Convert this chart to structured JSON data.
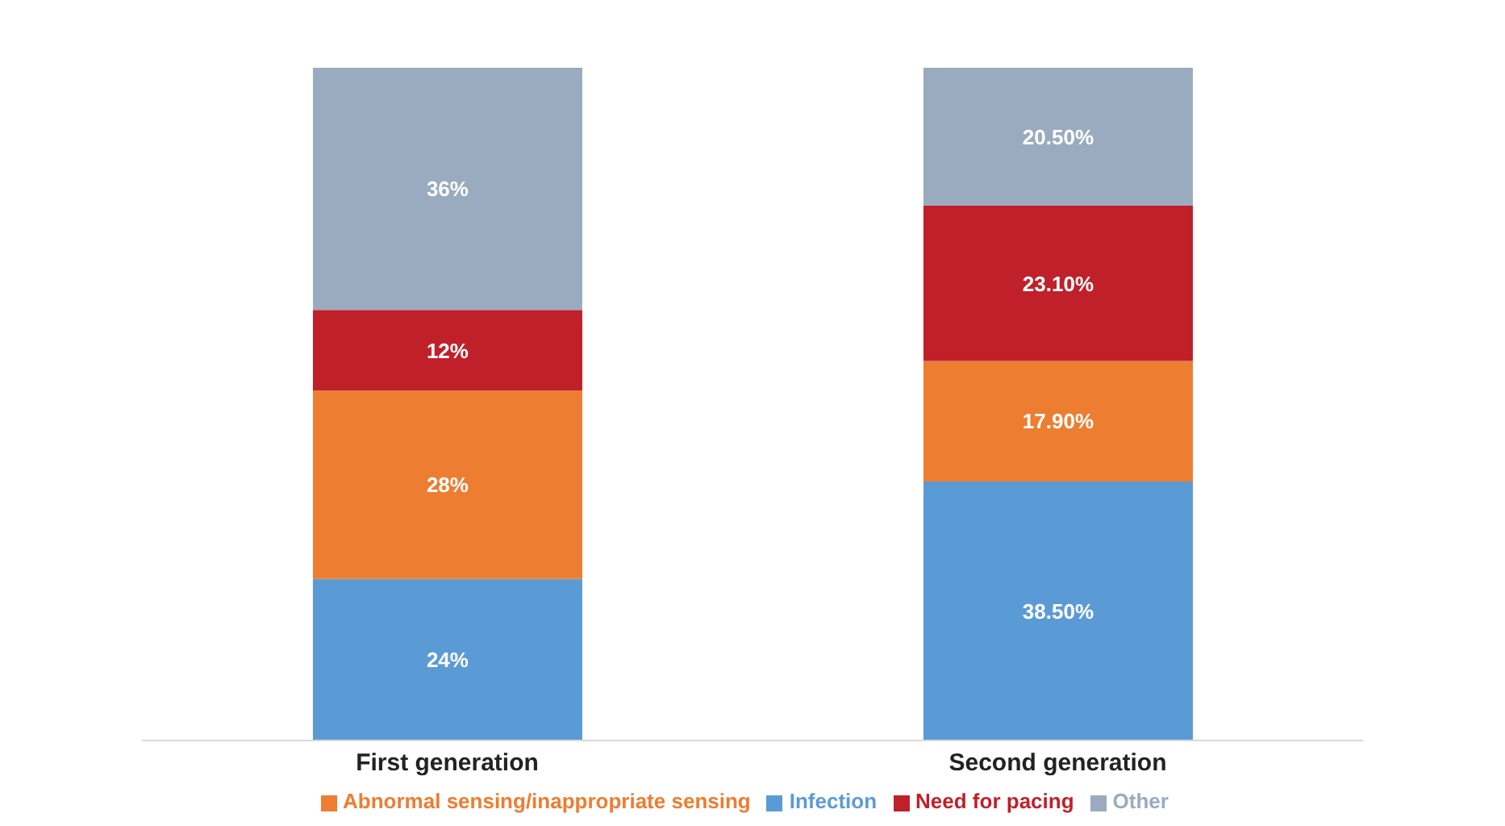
{
  "chart_data": {
    "type": "bar",
    "stacked": true,
    "categories": [
      "First generation",
      "Second generation"
    ],
    "series": [
      {
        "name": "Infection",
        "color": "#5b9bd5",
        "values": [
          24,
          38.5
        ],
        "value_labels": [
          "24%",
          "38.50%"
        ]
      },
      {
        "name": "Abnormal sensing/inappropriate sensing",
        "color": "#ed7d31",
        "values": [
          28,
          17.9
        ],
        "value_labels": [
          "28%",
          "17.90%"
        ]
      },
      {
        "name": "Need for pacing",
        "color": "#c0202a",
        "values": [
          12,
          23.1
        ],
        "value_labels": [
          "12%",
          "23.10%"
        ]
      },
      {
        "name": "Other",
        "color": "#9aabbf",
        "values": [
          36,
          20.5
        ],
        "value_labels": [
          "36%",
          "20.50%"
        ]
      }
    ],
    "legend": "bottom",
    "grid": false
  }
}
